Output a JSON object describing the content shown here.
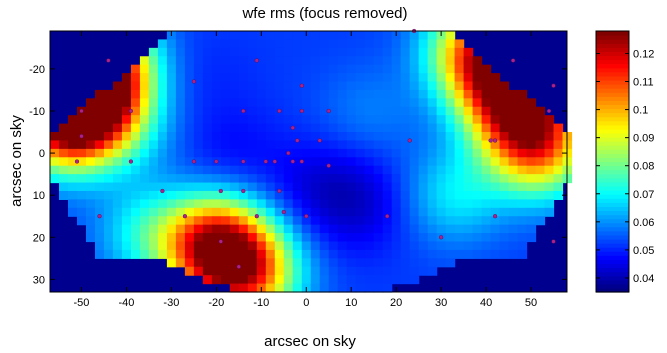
{
  "chart_data": {
    "type": "heatmap",
    "title": "wfe rms (focus removed)",
    "xlabel": "arcsec on sky",
    "ylabel": "arcsec on sky",
    "xlim": [
      -57,
      58
    ],
    "ylim": [
      -29,
      33
    ],
    "y_reversed": true,
    "xticks": [
      -50,
      -40,
      -30,
      -20,
      -10,
      0,
      10,
      20,
      30,
      40,
      50
    ],
    "yticks": [
      -20,
      -10,
      0,
      10,
      20,
      30
    ],
    "colorbar": {
      "min": 0.035,
      "max": 0.128,
      "ticks": [
        0.04,
        0.05,
        0.06,
        0.07,
        0.08,
        0.09,
        0.1,
        0.11,
        0.12
      ],
      "colormap": "jet"
    },
    "background_color": "#00008f",
    "hotspots": [
      {
        "x": -50,
        "y": -12,
        "value": 0.125
      },
      {
        "x": -46,
        "y": -20,
        "value": 0.108
      },
      {
        "x": -54,
        "y": -6,
        "value": 0.095
      },
      {
        "x": -20,
        "y": 22,
        "value": 0.118
      },
      {
        "x": -13,
        "y": 29,
        "value": 0.1
      },
      {
        "x": 48,
        "y": -10,
        "value": 0.112
      },
      {
        "x": 42,
        "y": -20,
        "value": 0.1
      },
      {
        "x": 52,
        "y": 0,
        "value": 0.092
      },
      {
        "x": 38,
        "y": -26,
        "value": 0.085
      },
      {
        "x": -35,
        "y": 19,
        "value": 0.07
      },
      {
        "x": -48,
        "y": -26,
        "value": 0.072
      },
      {
        "x": 33,
        "y": 10,
        "value": 0.068
      },
      {
        "x": -40,
        "y": -5,
        "value": 0.063
      },
      {
        "x": -17,
        "y": 0,
        "value": 0.047
      },
      {
        "x": 2,
        "y": 8,
        "value": 0.045
      },
      {
        "x": 12,
        "y": 12,
        "value": 0.043
      },
      {
        "x": -22,
        "y": -18,
        "value": 0.05
      },
      {
        "x": 14,
        "y": -10,
        "value": 0.058
      }
    ],
    "sample_points": [
      [
        -44,
        -22
      ],
      [
        -25,
        -17
      ],
      [
        -11,
        -22
      ],
      [
        -1,
        -16
      ],
      [
        24,
        -29
      ],
      [
        46,
        -22
      ],
      [
        55,
        -16
      ],
      [
        -50,
        -10
      ],
      [
        -39,
        -10
      ],
      [
        -14,
        -10
      ],
      [
        -6,
        -10
      ],
      [
        -1,
        -10
      ],
      [
        5,
        -10
      ],
      [
        54,
        -10
      ],
      [
        -50,
        -4
      ],
      [
        -3,
        -6
      ],
      [
        -2,
        -3
      ],
      [
        -4,
        0
      ],
      [
        3,
        -3
      ],
      [
        23,
        -3
      ],
      [
        41,
        -3
      ],
      [
        42,
        -3
      ],
      [
        -51,
        2
      ],
      [
        -39,
        2
      ],
      [
        -25,
        2
      ],
      [
        -20,
        2
      ],
      [
        -14,
        2
      ],
      [
        -9,
        2
      ],
      [
        -7,
        2
      ],
      [
        -3,
        2
      ],
      [
        -1,
        2
      ],
      [
        5,
        3
      ],
      [
        -32,
        9
      ],
      [
        -19,
        9
      ],
      [
        -14,
        9
      ],
      [
        -6,
        9
      ],
      [
        -5,
        14
      ],
      [
        -46,
        15
      ],
      [
        -27,
        15
      ],
      [
        -11,
        15
      ],
      [
        0,
        15
      ],
      [
        18,
        15
      ],
      [
        42,
        15
      ],
      [
        -19,
        21
      ],
      [
        30,
        20
      ],
      [
        55,
        21
      ],
      [
        -15,
        27
      ]
    ]
  }
}
